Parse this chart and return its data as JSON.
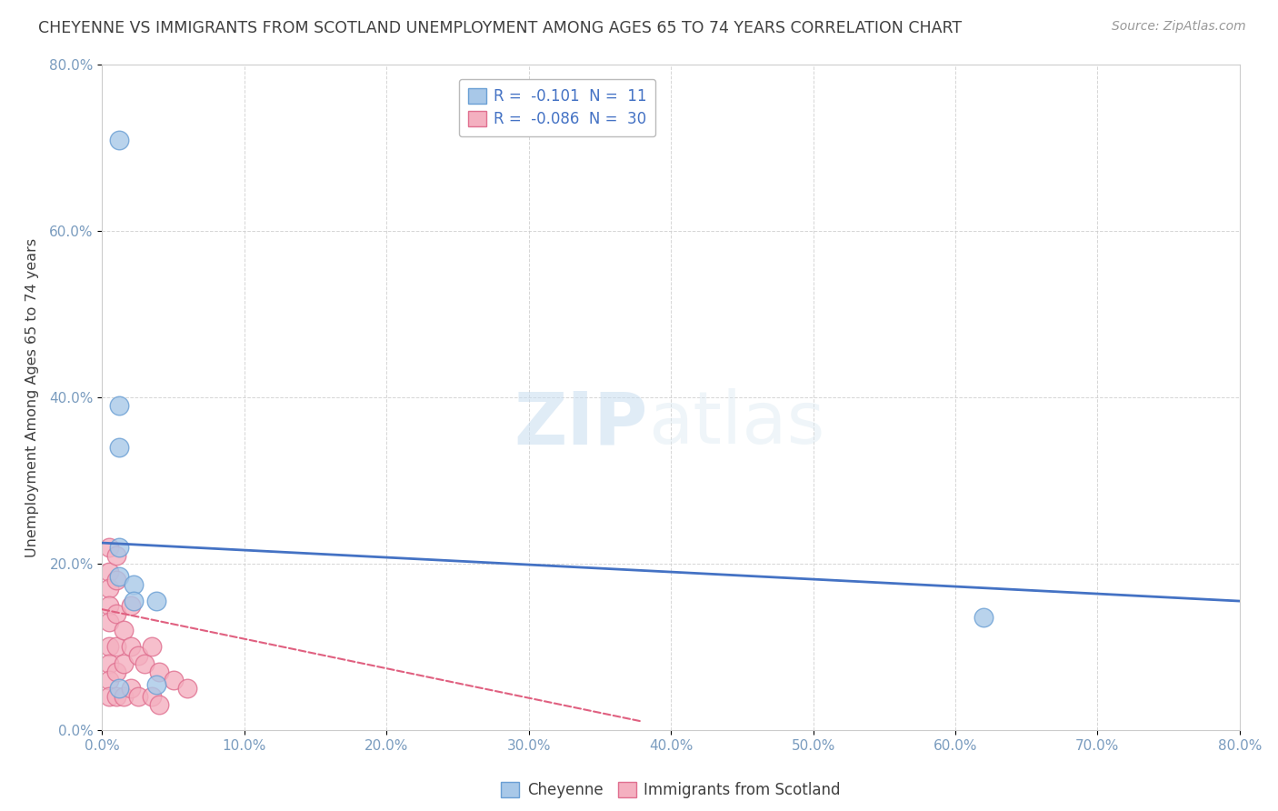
{
  "title": "CHEYENNE VS IMMIGRANTS FROM SCOTLAND UNEMPLOYMENT AMONG AGES 65 TO 74 YEARS CORRELATION CHART",
  "source": "Source: ZipAtlas.com",
  "ylabel": "Unemployment Among Ages 65 to 74 years",
  "xlim": [
    0,
    0.8
  ],
  "ylim": [
    0,
    0.8
  ],
  "xticks": [
    0.0,
    0.1,
    0.2,
    0.3,
    0.4,
    0.5,
    0.6,
    0.7,
    0.8
  ],
  "yticks": [
    0.0,
    0.2,
    0.4,
    0.6,
    0.8
  ],
  "xtick_labels": [
    "0.0%",
    "10.0%",
    "20.0%",
    "30.0%",
    "40.0%",
    "50.0%",
    "60.0%",
    "70.0%",
    "80.0%"
  ],
  "ytick_labels": [
    "0.0%",
    "20.0%",
    "40.0%",
    "60.0%",
    "80.0%"
  ],
  "cheyenne_x": [
    0.012,
    0.012,
    0.012,
    0.012,
    0.012,
    0.022,
    0.022,
    0.038,
    0.038,
    0.62,
    0.012
  ],
  "cheyenne_y": [
    0.71,
    0.39,
    0.34,
    0.22,
    0.185,
    0.175,
    0.155,
    0.155,
    0.055,
    0.135,
    0.05
  ],
  "scotland_x": [
    0.005,
    0.005,
    0.005,
    0.005,
    0.005,
    0.005,
    0.005,
    0.005,
    0.005,
    0.01,
    0.01,
    0.01,
    0.01,
    0.01,
    0.01,
    0.015,
    0.015,
    0.015,
    0.02,
    0.02,
    0.02,
    0.025,
    0.025,
    0.03,
    0.035,
    0.035,
    0.04,
    0.04,
    0.05,
    0.06
  ],
  "scotland_y": [
    0.22,
    0.19,
    0.17,
    0.15,
    0.13,
    0.1,
    0.08,
    0.06,
    0.04,
    0.21,
    0.18,
    0.14,
    0.1,
    0.07,
    0.04,
    0.12,
    0.08,
    0.04,
    0.15,
    0.1,
    0.05,
    0.09,
    0.04,
    0.08,
    0.1,
    0.04,
    0.07,
    0.03,
    0.06,
    0.05
  ],
  "cheyenne_color": "#a8c8e8",
  "scotland_color": "#f4b0c0",
  "cheyenne_edge": "#6a9fd4",
  "scotland_edge": "#e07090",
  "blue_line_start_x": 0.0,
  "blue_line_start_y": 0.225,
  "blue_line_end_x": 0.8,
  "blue_line_end_y": 0.155,
  "pink_line_start_x": 0.0,
  "pink_line_start_y": 0.145,
  "pink_line_end_x": 0.38,
  "pink_line_end_y": 0.01,
  "legend_r1": "R =  -0.101  N =  11",
  "legend_r2": "R =  -0.086  N =  30",
  "legend_text_color": "#4472c4",
  "background_color": "#ffffff",
  "grid_color": "#cccccc",
  "title_color": "#404040",
  "axis_color": "#7a9cbf",
  "watermark_zip_color": "#c8ddf0",
  "watermark_atlas_color": "#d8e8f0"
}
